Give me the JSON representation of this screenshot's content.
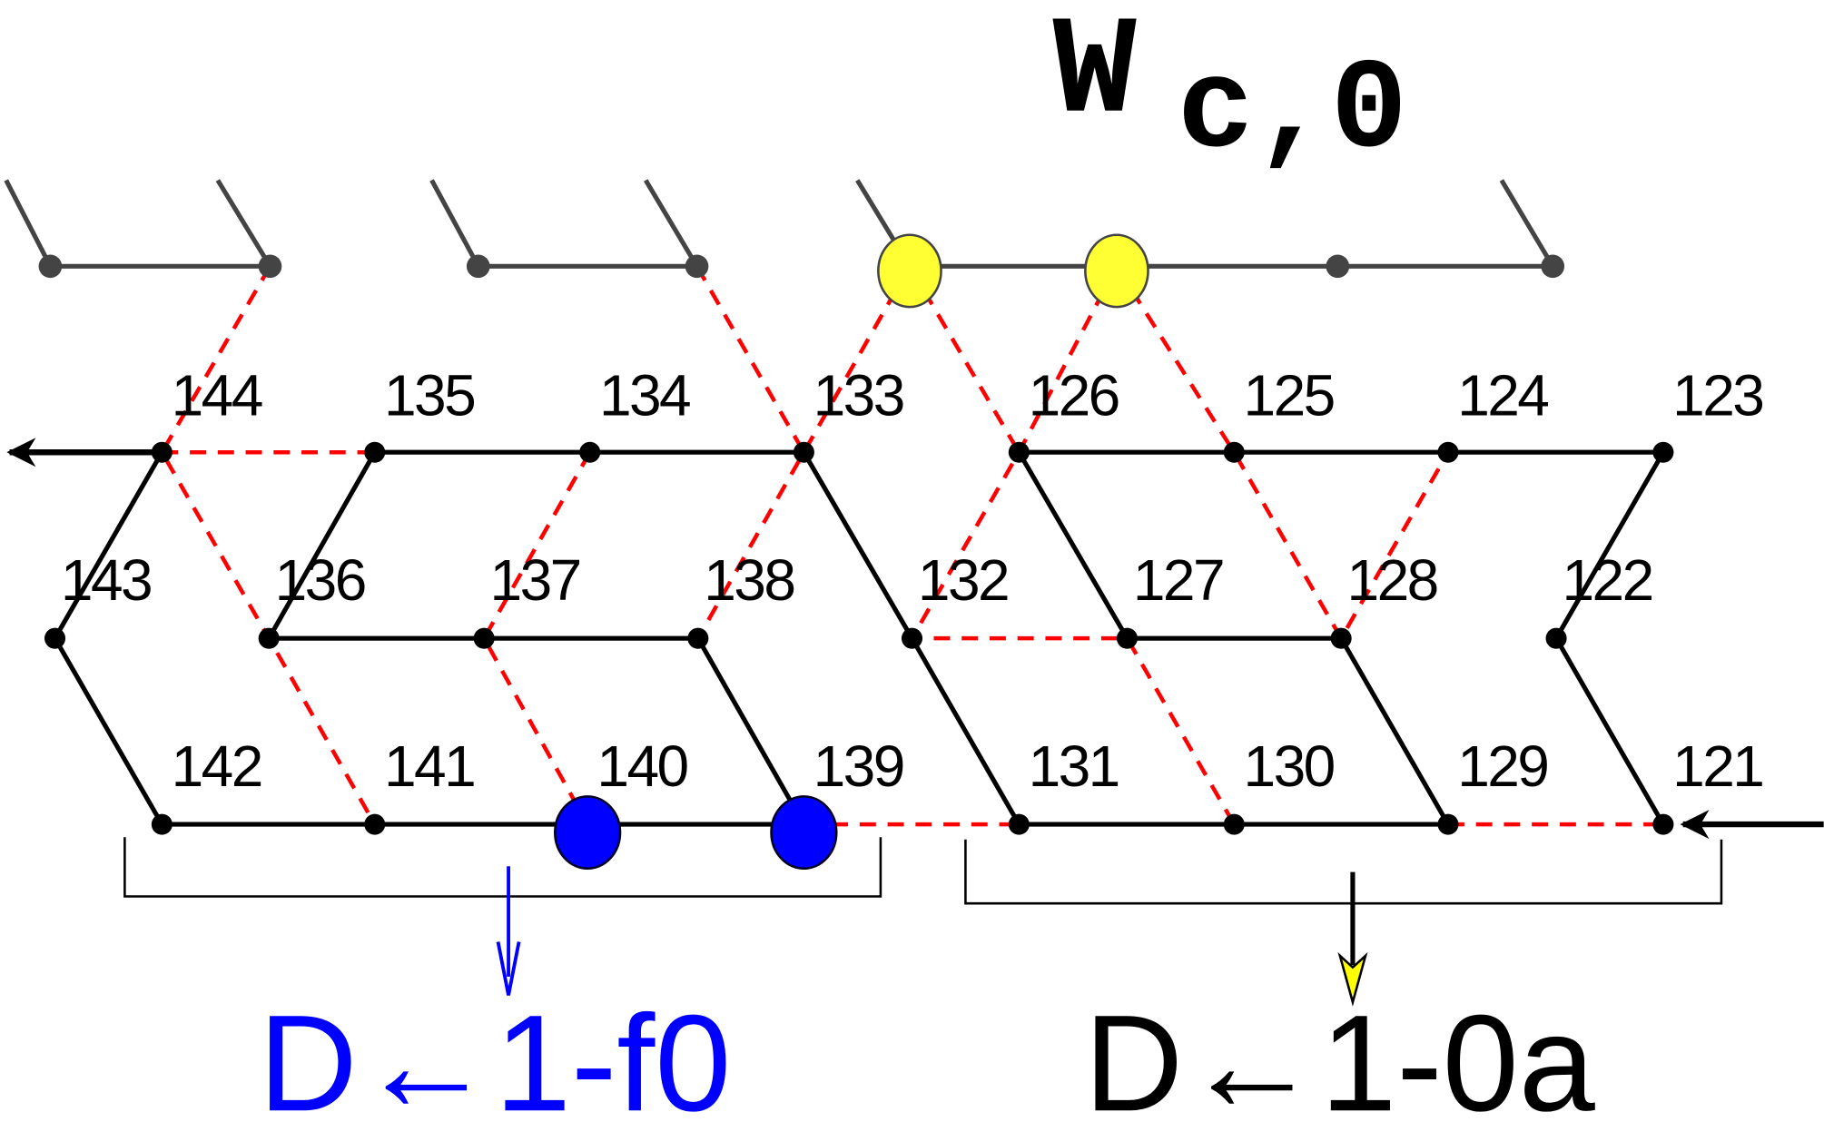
{
  "title": {
    "main": "W",
    "sub": "c,0"
  },
  "rows": [
    [
      "144",
      "135",
      "134",
      "133",
      "126",
      "125",
      "124",
      "123"
    ],
    [
      "143",
      "136",
      "137",
      "138",
      "132",
      "127",
      "128",
      "122"
    ],
    [
      "142",
      "141",
      "140",
      "139",
      "131",
      "130",
      "129",
      "121"
    ]
  ],
  "groups": [
    {
      "label": "D←1-f0",
      "color": "#0000ff"
    },
    {
      "label": "D←1-0a",
      "color": "#000000"
    }
  ]
}
